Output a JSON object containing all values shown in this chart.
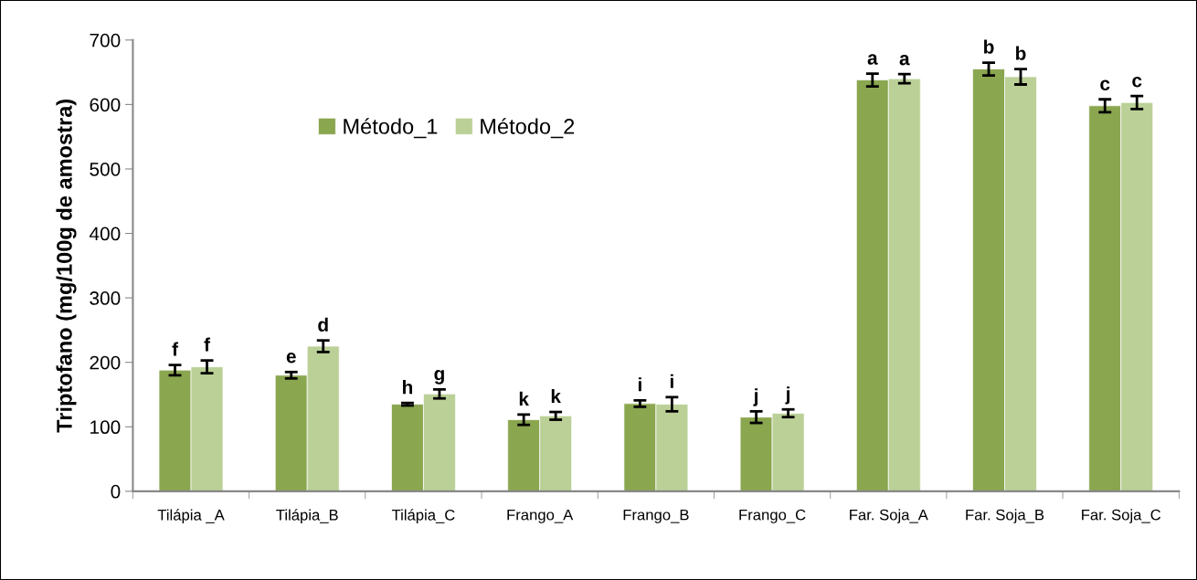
{
  "chart_data": {
    "type": "bar",
    "ylabel": "Triptofano (mg/100g de amostra)",
    "categories": [
      "Tilápia _A",
      "Tilápia_B",
      "Tilápia_C",
      "Frango_A",
      "Frango_B",
      "Frango_C",
      "Far. Soja_A",
      "Far. Soja_B",
      "Far. Soja_C"
    ],
    "series": [
      {
        "name": "Método_1",
        "color": "#8aa64f",
        "values": [
          188,
          180,
          135,
          111,
          136,
          115,
          638,
          655,
          598
        ],
        "errors": [
          8,
          5,
          2,
          8,
          5,
          9,
          10,
          10,
          10
        ],
        "value_labels": [
          "f",
          "e",
          "h",
          "k",
          "i",
          "j",
          "a",
          "b",
          "c"
        ]
      },
      {
        "name": "Método_2",
        "color": "#bbd097",
        "values": [
          193,
          225,
          151,
          117,
          135,
          121,
          640,
          643,
          603
        ],
        "errors": [
          10,
          9,
          7,
          6,
          11,
          6,
          7,
          12,
          10
        ],
        "value_labels": [
          "f",
          "d",
          "g",
          "k",
          "i",
          "j",
          "a",
          "b",
          "c"
        ]
      }
    ],
    "ylim": [
      0,
      700
    ],
    "yticks": [
      0,
      100,
      200,
      300,
      400,
      500,
      600,
      700
    ],
    "grid": false,
    "legend": "top"
  }
}
